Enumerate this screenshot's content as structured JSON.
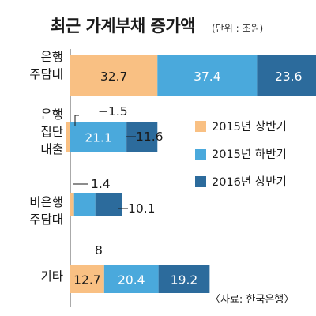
{
  "chart_data": {
    "type": "bar",
    "orientation": "horizontal",
    "stacked": true,
    "title": "최근 가계부채 증가액",
    "unit": "(단위 : 조원)",
    "source": "〈자료: 한국은행〉",
    "categories": [
      [
        "은행",
        "주담대"
      ],
      [
        "은행",
        "집단",
        "대출"
      ],
      [
        "비은행",
        "주담대"
      ],
      [
        "기타"
      ]
    ],
    "series": [
      {
        "name": "2015년 상반기",
        "color": "#f9c083",
        "values": [
          32.7,
          -1.5,
          1.4,
          12.7
        ],
        "labels": [
          "32.7",
          "−1.5",
          "1.4",
          "12.7"
        ]
      },
      {
        "name": "2015년 하반기",
        "color": "#4aa9dc",
        "values": [
          37.4,
          21.1,
          8,
          20.4
        ],
        "labels": [
          "37.4",
          "21.1",
          "8",
          "20.4"
        ]
      },
      {
        "name": "2016년 상반기",
        "color": "#2c6b9c",
        "values": [
          23.6,
          11.6,
          10.1,
          19.2
        ],
        "labels": [
          "23.6",
          "11.6",
          "10.1",
          "19.2"
        ]
      }
    ],
    "legend_position": "right",
    "grid": false
  }
}
